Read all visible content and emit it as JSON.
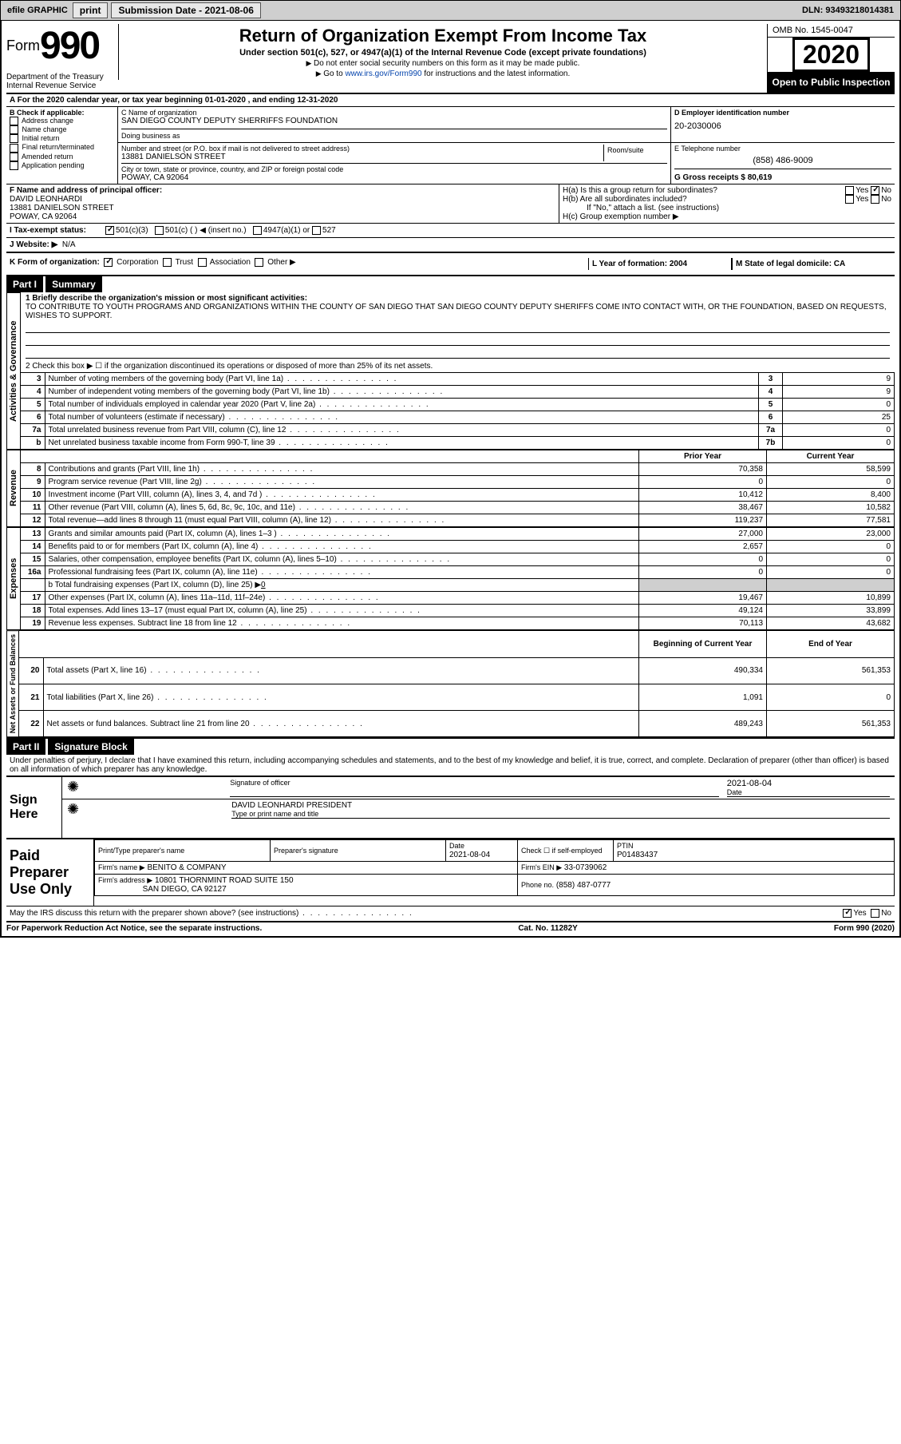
{
  "topbar": {
    "efile": "efile GRAPHIC",
    "print": "print",
    "submission_label": "Submission Date - 2021-08-06",
    "dln_label": "DLN: 93493218014381"
  },
  "header": {
    "form_word": "Form",
    "form_num": "990",
    "title": "Return of Organization Exempt From Income Tax",
    "subtitle": "Under section 501(c), 527, or 4947(a)(1) of the Internal Revenue Code (except private foundations)",
    "note1": "Do not enter social security numbers on this form as it may be made public.",
    "note2_prefix": "Go to ",
    "note2_link": "www.irs.gov/Form990",
    "note2_suffix": " for instructions and the latest information.",
    "dept": "Department of the Treasury\nInternal Revenue Service",
    "omb": "OMB No. 1545-0047",
    "year": "2020",
    "inspection": "Open to Public Inspection"
  },
  "section_a": {
    "line": "A For the 2020 calendar year, or tax year beginning 01-01-2020    , and ending 12-31-2020",
    "b_label": "B Check if applicable:",
    "b_opts": [
      "Address change",
      "Name change",
      "Initial return",
      "Final return/terminated",
      "Amended return",
      "Application pending"
    ],
    "c_label": "C Name of organization",
    "c_name": "SAN DIEGO COUNTY DEPUTY SHERRIFFS FOUNDATION",
    "dba_label": "Doing business as",
    "addr_label": "Number and street (or P.O. box if mail is not delivered to street address)",
    "addr": "13881 DANIELSON STREET",
    "room_label": "Room/suite",
    "city_label": "City or town, state or province, country, and ZIP or foreign postal code",
    "city": "POWAY, CA  92064",
    "d_label": "D Employer identification number",
    "d_ein": "20-2030006",
    "e_label": "E Telephone number",
    "e_phone": "(858) 486-9009",
    "g_label": "G Gross receipts $ 80,619",
    "f_label": "F  Name and address of principal officer:",
    "f_officer": "DAVID LEONHARDI\n13881 DANIELSON STREET\nPOWAY, CA  92064",
    "ha_label": "H(a)  Is this a group return for subordinates?",
    "hb_label": "H(b)  Are all subordinates included?",
    "h_note": "If \"No,\" attach a list. (see instructions)",
    "hc_label": "H(c)  Group exemption number ▶",
    "yes": "Yes",
    "no": "No",
    "i_label": "I  Tax-exempt status:",
    "i_501c3": "501(c)(3)",
    "i_501c": "501(c) (  ) ◀ (insert no.)",
    "i_4947": "4947(a)(1) or",
    "i_527": "527",
    "j_label": "J  Website: ▶",
    "j_val": "N/A",
    "k_label": "K Form of organization:",
    "k_corp": "Corporation",
    "k_trust": "Trust",
    "k_assoc": "Association",
    "k_other": "Other ▶",
    "l_label": "L Year of formation: 2004",
    "m_label": "M State of legal domicile: CA"
  },
  "part1": {
    "header": "Part I",
    "title": "Summary",
    "q1": "1  Briefly describe the organization's mission or most significant activities:",
    "mission": "TO CONTRIBUTE TO YOUTH PROGRAMS AND ORGANIZATIONS WITHIN THE COUNTY OF SAN DIEGO THAT SAN DIEGO COUNTY DEPUTY SHERIFFS COME INTO CONTACT WITH, OR THE FOUNDATION, BASED ON REQUESTS, WISHES TO SUPPORT.",
    "q2": "2  Check this box ▶ ☐  if the organization discontinued its operations or disposed of more than 25% of its net assets.",
    "vert_activities": "Activities & Governance",
    "vert_revenue": "Revenue",
    "vert_expenses": "Expenses",
    "vert_net": "Net Assets or Fund Balances",
    "rows_gov": [
      {
        "n": "3",
        "t": "Number of voting members of the governing body (Part VI, line 1a)",
        "box": "3",
        "v": "9"
      },
      {
        "n": "4",
        "t": "Number of independent voting members of the governing body (Part VI, line 1b)",
        "box": "4",
        "v": "9"
      },
      {
        "n": "5",
        "t": "Total number of individuals employed in calendar year 2020 (Part V, line 2a)",
        "box": "5",
        "v": "0"
      },
      {
        "n": "6",
        "t": "Total number of volunteers (estimate if necessary)",
        "box": "6",
        "v": "25"
      },
      {
        "n": "7a",
        "t": "Total unrelated business revenue from Part VIII, column (C), line 12",
        "box": "7a",
        "v": "0"
      },
      {
        "n": "b",
        "t": "Net unrelated business taxable income from Form 990-T, line 39",
        "box": "7b",
        "v": "0"
      }
    ],
    "col_prior": "Prior Year",
    "col_current": "Current Year",
    "rows_rev": [
      {
        "n": "8",
        "t": "Contributions and grants (Part VIII, line 1h)",
        "p": "70,358",
        "c": "58,599"
      },
      {
        "n": "9",
        "t": "Program service revenue (Part VIII, line 2g)",
        "p": "0",
        "c": "0"
      },
      {
        "n": "10",
        "t": "Investment income (Part VIII, column (A), lines 3, 4, and 7d )",
        "p": "10,412",
        "c": "8,400"
      },
      {
        "n": "11",
        "t": "Other revenue (Part VIII, column (A), lines 5, 6d, 8c, 9c, 10c, and 11e)",
        "p": "38,467",
        "c": "10,582"
      },
      {
        "n": "12",
        "t": "Total revenue—add lines 8 through 11 (must equal Part VIII, column (A), line 12)",
        "p": "119,237",
        "c": "77,581"
      }
    ],
    "rows_exp": [
      {
        "n": "13",
        "t": "Grants and similar amounts paid (Part IX, column (A), lines 1–3 )",
        "p": "27,000",
        "c": "23,000"
      },
      {
        "n": "14",
        "t": "Benefits paid to or for members (Part IX, column (A), line 4)",
        "p": "2,657",
        "c": "0"
      },
      {
        "n": "15",
        "t": "Salaries, other compensation, employee benefits (Part IX, column (A), lines 5–10)",
        "p": "0",
        "c": "0"
      },
      {
        "n": "16a",
        "t": "Professional fundraising fees (Part IX, column (A), line 11e)",
        "p": "0",
        "c": "0"
      }
    ],
    "row16b_label": "b  Total fundraising expenses (Part IX, column (D), line 25) ▶",
    "row16b_val": "0",
    "rows_exp2": [
      {
        "n": "17",
        "t": "Other expenses (Part IX, column (A), lines 11a–11d, 11f–24e)",
        "p": "19,467",
        "c": "10,899"
      },
      {
        "n": "18",
        "t": "Total expenses. Add lines 13–17 (must equal Part IX, column (A), line 25)",
        "p": "49,124",
        "c": "33,899"
      },
      {
        "n": "19",
        "t": "Revenue less expenses. Subtract line 18 from line 12",
        "p": "70,113",
        "c": "43,682"
      }
    ],
    "col_begin": "Beginning of Current Year",
    "col_end": "End of Year",
    "rows_net": [
      {
        "n": "20",
        "t": "Total assets (Part X, line 16)",
        "p": "490,334",
        "c": "561,353"
      },
      {
        "n": "21",
        "t": "Total liabilities (Part X, line 26)",
        "p": "1,091",
        "c": "0"
      },
      {
        "n": "22",
        "t": "Net assets or fund balances. Subtract line 21 from line 20",
        "p": "489,243",
        "c": "561,353"
      }
    ]
  },
  "part2": {
    "header": "Part II",
    "title": "Signature Block",
    "declaration": "Under penalties of perjury, I declare that I have examined this return, including accompanying schedules and statements, and to the best of my knowledge and belief, it is true, correct, and complete. Declaration of preparer (other than officer) is based on all information of which preparer has any knowledge.",
    "sign_here": "Sign Here",
    "sig_officer_label": "Signature of officer",
    "sig_date": "2021-08-04",
    "date_label": "Date",
    "officer_name": "DAVID LEONHARDI  PRESIDENT",
    "officer_name_label": "Type or print name and title",
    "paid": "Paid Preparer Use Only",
    "prep_name_label": "Print/Type preparer's name",
    "prep_sig_label": "Preparer's signature",
    "prep_date": "2021-08-04",
    "check_self": "Check ☐ if self-employed",
    "ptin_label": "PTIN",
    "ptin": "P01483437",
    "firm_name_label": "Firm's name    ▶",
    "firm_name": "BENITO & COMPANY",
    "firm_ein_label": "Firm's EIN ▶",
    "firm_ein": "33-0739062",
    "firm_addr_label": "Firm's address ▶",
    "firm_addr1": "10801 THORNMINT ROAD SUITE 150",
    "firm_addr2": "SAN DIEGO, CA  92127",
    "firm_phone_label": "Phone no.",
    "firm_phone": "(858) 487-0777",
    "discuss": "May the IRS discuss this return with the preparer shown above? (see instructions)"
  },
  "footer": {
    "left": "For Paperwork Reduction Act Notice, see the separate instructions.",
    "mid": "Cat. No. 11282Y",
    "right": "Form 990 (2020)"
  }
}
